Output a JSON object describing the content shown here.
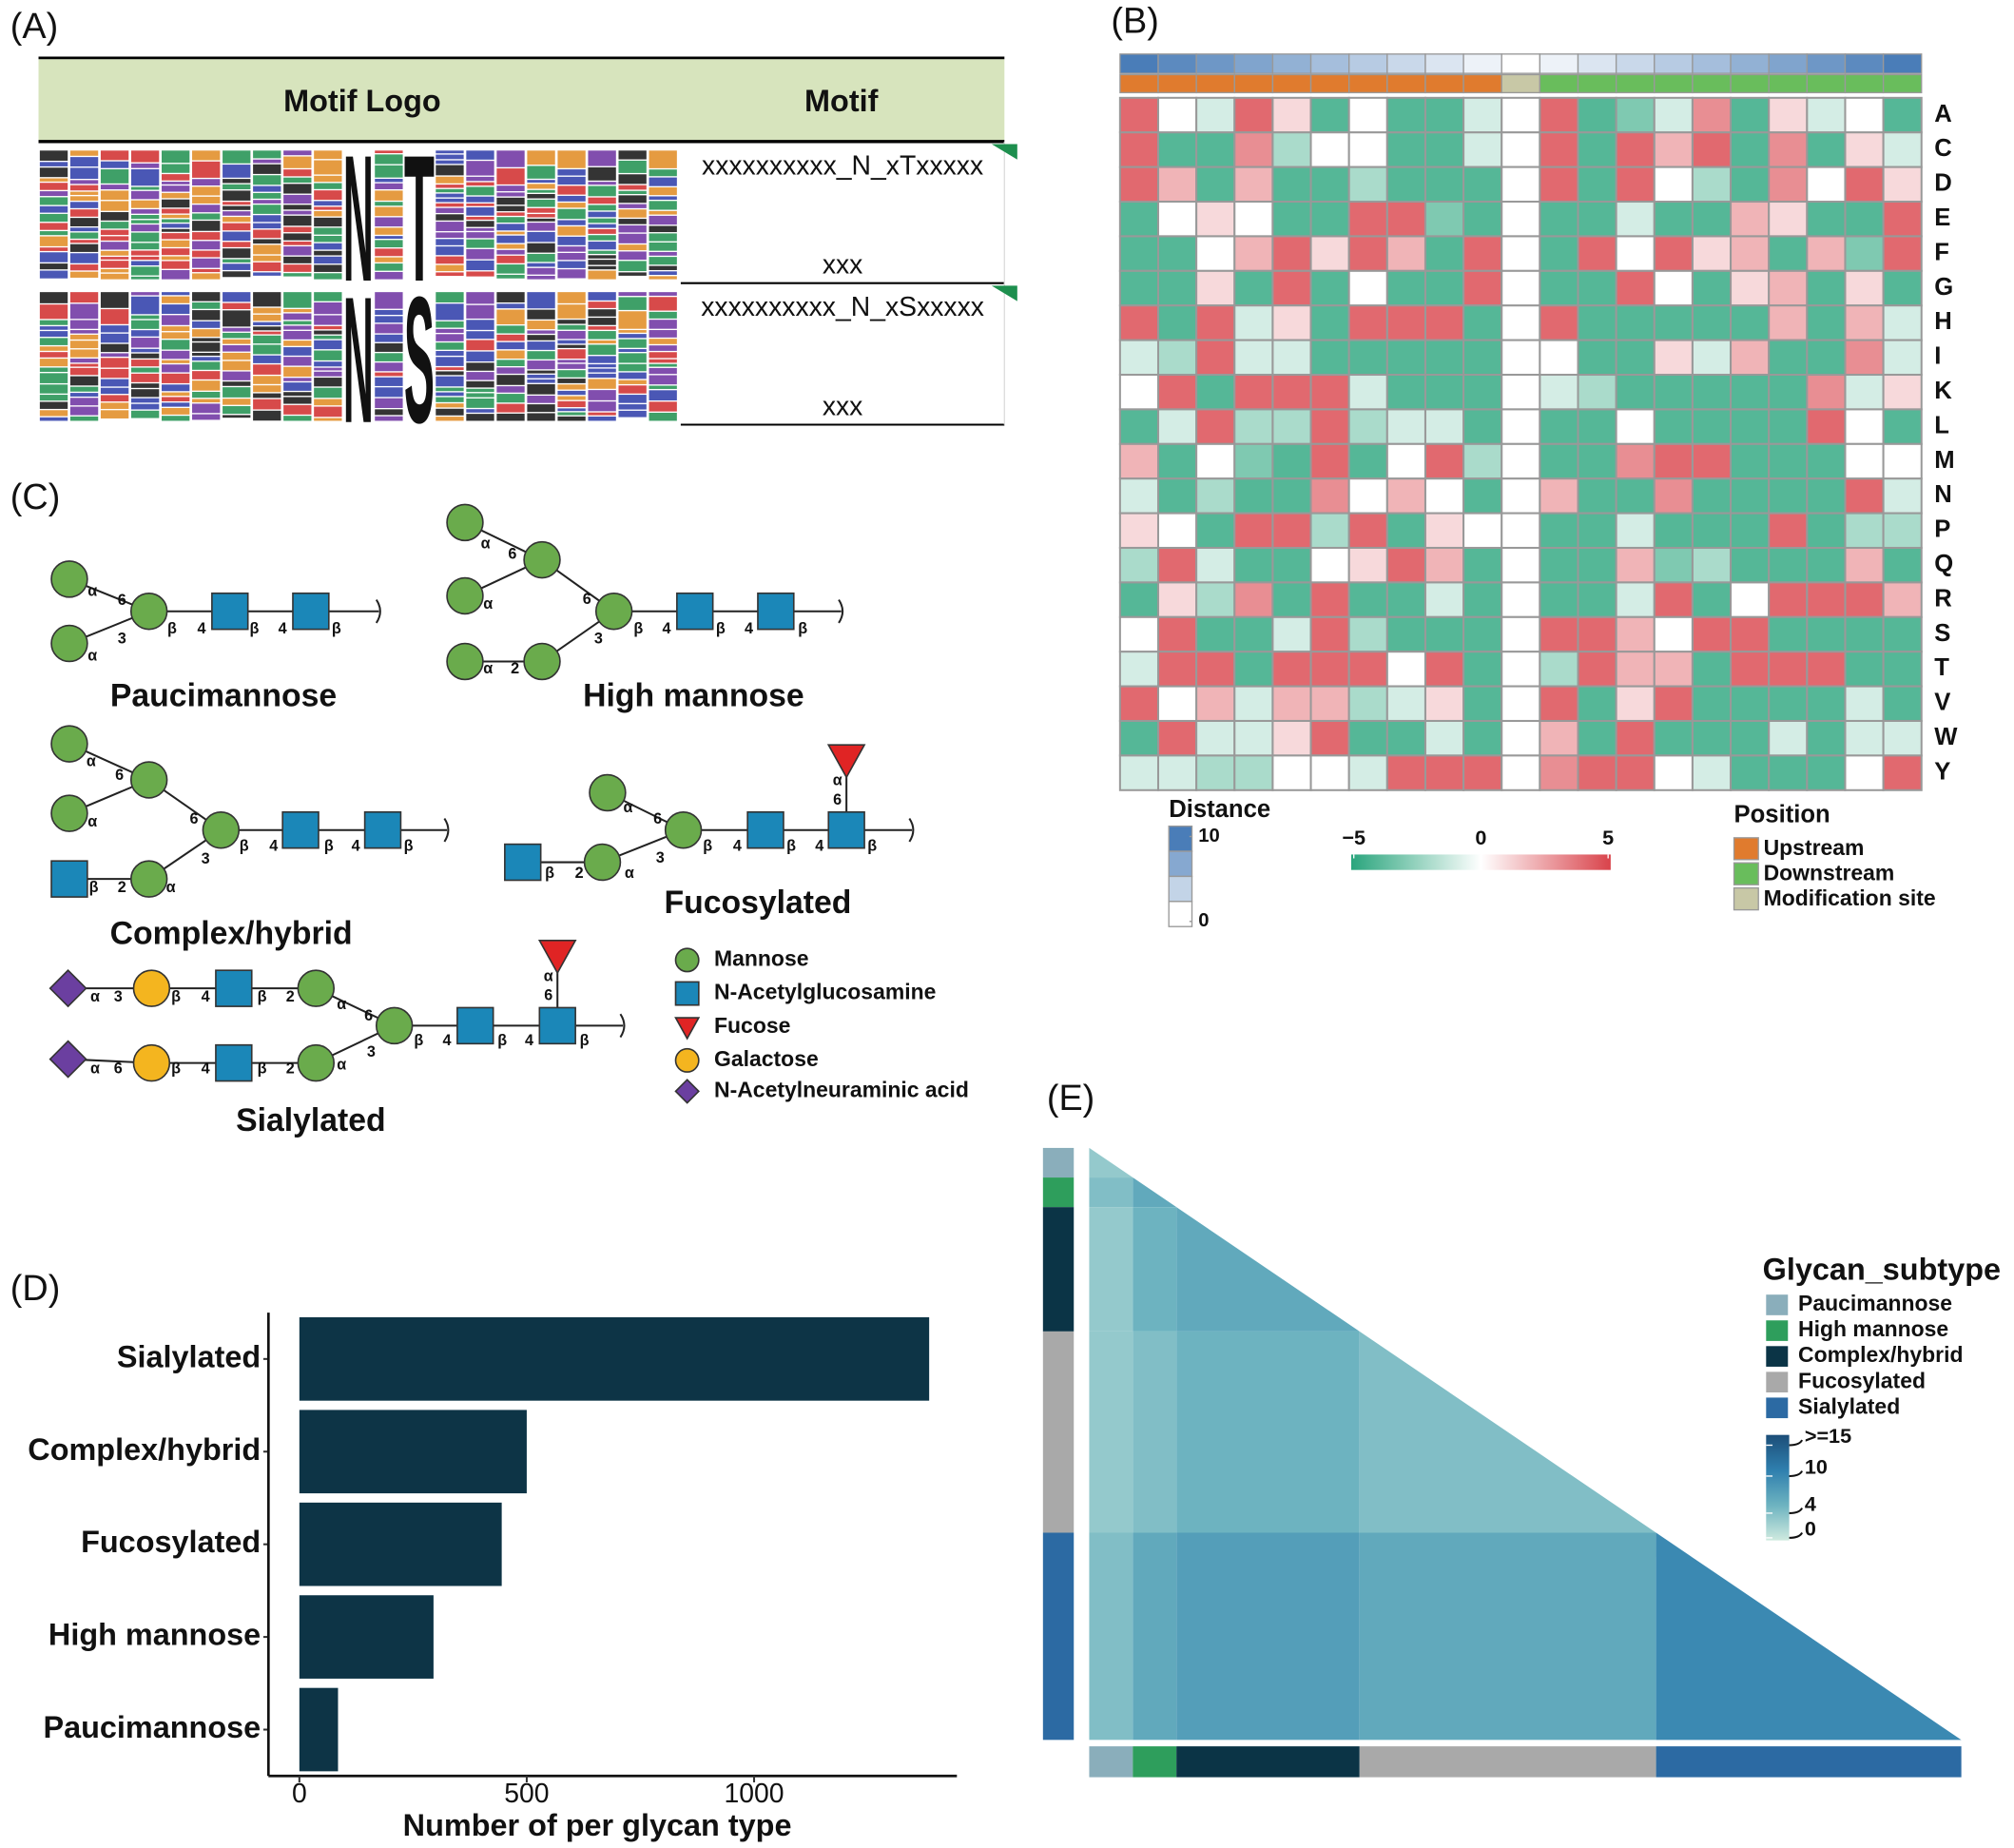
{
  "panel_labels": [
    "(A)",
    "(B)",
    "(C)",
    "(D)",
    "(E)"
  ],
  "motif_table": {
    "headers": [
      "Motif Logo",
      "Motif"
    ],
    "rows": [
      {
        "logo_letters": [
          "N",
          "T"
        ],
        "motif": "xxxxxxxxxx_N_xTxxxxx",
        "motif_cont": "xxx"
      },
      {
        "logo_letters": [
          "N",
          "S"
        ],
        "motif": "xxxxxxxxxx_N_xSxxxxx",
        "motif_cont": "xxx"
      }
    ]
  },
  "glycans": [
    {
      "name": "Paucimannose",
      "labels": [
        "α",
        "6",
        "α",
        "3",
        "β",
        "4",
        "β",
        "4",
        "β"
      ]
    },
    {
      "name": "High mannose",
      "labels": [
        "α",
        "6",
        "α",
        "6",
        "α",
        "2",
        "3",
        "β",
        "4",
        "β",
        "4",
        "β"
      ]
    },
    {
      "name": "Complex/hybrid",
      "labels": [
        "α",
        "6",
        "α",
        "6",
        "β",
        "2",
        "α",
        "3",
        "β",
        "4",
        "β",
        "4",
        "β"
      ]
    },
    {
      "name": "Fucosylated",
      "labels": [
        "α",
        "6",
        "β",
        "2",
        "α",
        "3",
        "β",
        "4",
        "β",
        "4",
        "α",
        "6",
        "β"
      ]
    },
    {
      "name": "Sialylated",
      "labels": [
        "α",
        "3",
        "β",
        "4",
        "β",
        "2",
        "α",
        "6",
        "α",
        "6",
        "β",
        "4",
        "β",
        "2",
        "α",
        "3",
        "β",
        "4",
        "β",
        "4",
        "α",
        "6",
        "β"
      ]
    }
  ],
  "glycan_legend": [
    "Mannose",
    "N-Acetylglucosamine",
    "Fucose",
    "Galactose",
    "N-Acetylneuraminic acid"
  ],
  "chart_data": [
    {
      "type": "heatmap",
      "rows": [
        "A",
        "C",
        "D",
        "E",
        "F",
        "G",
        "H",
        "I",
        "K",
        "L",
        "M",
        "N",
        "P",
        "Q",
        "R",
        "S",
        "T",
        "V",
        "W",
        "Y"
      ],
      "values": [
        [
          4,
          0,
          -1,
          4,
          1,
          -4,
          0,
          -4,
          -4,
          -1,
          0,
          4,
          -4,
          -3,
          -1,
          3,
          -4,
          1,
          -1,
          0,
          -4
        ],
        [
          4,
          -4,
          -4,
          3,
          -2,
          0,
          0,
          -4,
          -4,
          -1,
          0,
          4,
          -4,
          4,
          2,
          4,
          -4,
          3,
          -4,
          1,
          -1
        ],
        [
          4,
          2,
          -4,
          2,
          -4,
          -4,
          -2,
          -4,
          -4,
          -4,
          0,
          4,
          -4,
          4,
          0,
          -2,
          -4,
          3,
          0,
          4,
          1
        ],
        [
          -4,
          0,
          1,
          0,
          -4,
          -4,
          4,
          4,
          -3,
          -4,
          0,
          -4,
          -4,
          -1,
          -4,
          -4,
          2,
          1,
          -4,
          -4,
          4
        ],
        [
          -4,
          -4,
          0,
          2,
          4,
          1,
          4,
          2,
          -4,
          4,
          0,
          -4,
          4,
          0,
          4,
          1,
          2,
          -4,
          2,
          -3,
          4
        ],
        [
          -4,
          -4,
          1,
          -4,
          4,
          -4,
          0,
          -4,
          -4,
          4,
          0,
          -4,
          -4,
          4,
          0,
          -4,
          1,
          2,
          -4,
          1,
          -4
        ],
        [
          4,
          -4,
          4,
          -1,
          1,
          -4,
          4,
          4,
          4,
          -4,
          0,
          4,
          -4,
          -4,
          -4,
          -4,
          -4,
          2,
          -4,
          2,
          -1
        ],
        [
          -1,
          -2,
          4,
          -1,
          -1,
          -4,
          -4,
          -4,
          -4,
          -4,
          0,
          0,
          -4,
          -4,
          1,
          -1,
          2,
          -4,
          -4,
          3,
          -1
        ],
        [
          0,
          4,
          -4,
          4,
          4,
          4,
          -1,
          -4,
          -4,
          -4,
          0,
          -1,
          -2,
          -4,
          -4,
          -4,
          -4,
          -4,
          3,
          -1,
          1
        ],
        [
          -4,
          -1,
          4,
          -2,
          -2,
          4,
          -2,
          -1,
          -1,
          -4,
          0,
          -4,
          -4,
          0,
          -4,
          -4,
          -4,
          -4,
          4,
          0,
          -4
        ],
        [
          2,
          -4,
          0,
          -3,
          -4,
          4,
          -4,
          0,
          4,
          -2,
          0,
          -4,
          -4,
          3,
          4,
          4,
          -4,
          -4,
          -4,
          0,
          0
        ],
        [
          -1,
          -4,
          -2,
          -4,
          -4,
          3,
          0,
          2,
          0,
          -4,
          0,
          2,
          -4,
          -4,
          3,
          -4,
          -4,
          -4,
          -4,
          4,
          -1
        ],
        [
          1,
          0,
          -4,
          4,
          4,
          -2,
          4,
          -4,
          1,
          0,
          0,
          -4,
          -4,
          -1,
          -4,
          -4,
          -4,
          4,
          -4,
          -2,
          -2
        ],
        [
          -2,
          4,
          -1,
          -4,
          -4,
          0,
          1,
          4,
          2,
          -4,
          0,
          -4,
          -4,
          2,
          -3,
          -2,
          -4,
          -4,
          -4,
          2,
          -4
        ],
        [
          -4,
          1,
          -2,
          3,
          -4,
          4,
          -4,
          -4,
          -1,
          -4,
          0,
          -4,
          -4,
          -1,
          4,
          -4,
          0,
          4,
          4,
          4,
          2
        ],
        [
          0,
          4,
          -4,
          -4,
          -1,
          4,
          -2,
          -4,
          -4,
          -4,
          0,
          4,
          4,
          2,
          0,
          4,
          4,
          -4,
          -4,
          -4,
          -4
        ],
        [
          -1,
          4,
          4,
          -4,
          4,
          4,
          4,
          0,
          4,
          -4,
          0,
          -2,
          4,
          2,
          2,
          -4,
          4,
          4,
          4,
          -4,
          -4
        ],
        [
          4,
          0,
          2,
          -1,
          2,
          2,
          -2,
          -1,
          1,
          -4,
          0,
          4,
          -4,
          1,
          4,
          -4,
          -4,
          -4,
          -4,
          -1,
          -4
        ],
        [
          -4,
          4,
          -1,
          -1,
          1,
          4,
          -4,
          -4,
          -1,
          -4,
          0,
          2,
          -4,
          4,
          -4,
          -4,
          -4,
          -1,
          -4,
          -1,
          -1
        ],
        [
          -1,
          -1,
          -2,
          -2,
          0,
          0,
          -1,
          4,
          4,
          4,
          0,
          3,
          4,
          4,
          0,
          -1,
          -4,
          -4,
          -4,
          0,
          4
        ]
      ],
      "colorbar": {
        "lim": [
          -5,
          5
        ],
        "ticks": [
          {
            "value": -5,
            "label": "−5"
          },
          0,
          5
        ],
        "colors": [
          "#2aa57d",
          "#ffffff",
          "#d9434b"
        ]
      },
      "distance": {
        "title": "Distance",
        "values": [
          10,
          9,
          8,
          7,
          6,
          5,
          4,
          3,
          2,
          1,
          0,
          1,
          2,
          3,
          4,
          5,
          6,
          7,
          8,
          9,
          10
        ],
        "lim": [
          0,
          10
        ],
        "ticks": [
          0,
          10
        ],
        "colors": [
          "#ffffff",
          "#4a7db8"
        ]
      },
      "position": {
        "title": "Position",
        "levels": [
          {
            "name": "Upstream",
            "color": "#e07b2e"
          },
          {
            "name": "Downstream",
            "color": "#69bd5c"
          },
          {
            "name": "Modification site",
            "color": "#c8c8a6"
          }
        ],
        "values": [
          0,
          0,
          0,
          0,
          0,
          0,
          0,
          0,
          0,
          0,
          2,
          1,
          1,
          1,
          1,
          1,
          1,
          1,
          1,
          1,
          1
        ]
      }
    },
    {
      "type": "bar",
      "orientation": "horizontal",
      "categories": [
        "Sialylated",
        "Complex/hybrid",
        "Fucosylated",
        "High mannose",
        "Paucimannose"
      ],
      "values": [
        1385,
        500,
        445,
        295,
        85
      ],
      "color": "#0d3446",
      "xlim": [
        -68,
        1446
      ],
      "xticks": [
        0,
        500,
        1000
      ],
      "xlabel": "Number of per glycan type"
    },
    {
      "type": "triangle-heatmap",
      "legend_title": "Glycan_subtype",
      "groups": [
        {
          "name": "Paucimannose",
          "color": "#8aaebb",
          "size": 5
        },
        {
          "name": "High mannose",
          "color": "#2e9e5c",
          "size": 5
        },
        {
          "name": "Complex/hybrid",
          "color": "#0b3446",
          "size": 21
        },
        {
          "name": "Fucosylated",
          "color": "#a9a9a9",
          "size": 34
        },
        {
          "name": "Sialylated",
          "color": "#2c6aa3",
          "size": 35
        }
      ],
      "block_values": [
        [
          3
        ],
        [
          4,
          6
        ],
        [
          3,
          5,
          6
        ],
        [
          3,
          4,
          5,
          4
        ],
        [
          4,
          6,
          7,
          6,
          9
        ]
      ],
      "clim": [
        0,
        15
      ],
      "cticks": [
        0,
        4,
        10,
        {
          "value": 15,
          "label": ">=15"
        }
      ],
      "colors": [
        "#cfeadf",
        "#6db3c0",
        "#2f7fae",
        "#1c4e78"
      ]
    }
  ]
}
